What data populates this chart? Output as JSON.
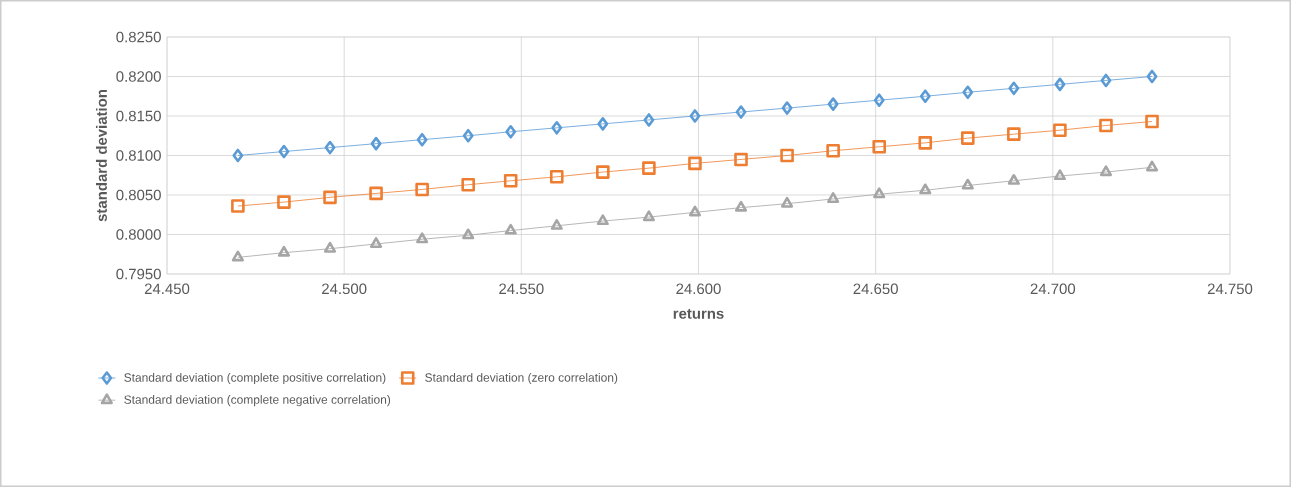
{
  "chart_data": {
    "type": "line",
    "xlabel": "returns",
    "ylabel": "standard deviation",
    "x": [
      24.47,
      24.483,
      24.496,
      24.509,
      24.522,
      24.535,
      24.547,
      24.56,
      24.573,
      24.586,
      24.599,
      24.612,
      24.625,
      24.638,
      24.651,
      24.664,
      24.676,
      24.689,
      24.702,
      24.715,
      24.728
    ],
    "series": [
      {
        "name": "Standard deviation (complete positive correlation)",
        "color": "#5b9bd5",
        "marker": "diamond",
        "values": [
          0.81,
          0.8105,
          0.811,
          0.8115,
          0.812,
          0.8125,
          0.813,
          0.8135,
          0.814,
          0.8145,
          0.815,
          0.8155,
          0.816,
          0.8165,
          0.817,
          0.8175,
          0.818,
          0.8185,
          0.819,
          0.8195,
          0.82
        ]
      },
      {
        "name": "Standard deviation (zero correlation)",
        "color": "#ed7d31",
        "marker": "square",
        "values": [
          0.8036,
          0.8041,
          0.8047,
          0.8052,
          0.8057,
          0.8063,
          0.8068,
          0.8073,
          0.8079,
          0.8084,
          0.809,
          0.8095,
          0.81,
          0.8106,
          0.8111,
          0.8116,
          0.8122,
          0.8127,
          0.8132,
          0.8138,
          0.8143
        ]
      },
      {
        "name": "Standard deviation (complete negative correlation)",
        "color": "#a5a5a5",
        "marker": "triangle",
        "values": [
          0.7971,
          0.7977,
          0.7982,
          0.7988,
          0.7994,
          0.7999,
          0.8005,
          0.8011,
          0.8017,
          0.8022,
          0.8028,
          0.8034,
          0.8039,
          0.8045,
          0.8051,
          0.8056,
          0.8062,
          0.8068,
          0.8074,
          0.8079,
          0.8085
        ]
      }
    ],
    "xlim": [
      24.45,
      24.75
    ],
    "xticks": [
      {
        "value": 24.45,
        "label": "24.450"
      },
      {
        "value": 24.5,
        "label": "24.500"
      },
      {
        "value": 24.55,
        "label": "24.550"
      },
      {
        "value": 24.6,
        "label": "24.600"
      },
      {
        "value": 24.65,
        "label": "24.650"
      },
      {
        "value": 24.7,
        "label": "24.700"
      },
      {
        "value": 24.75,
        "label": "24.750"
      }
    ],
    "ylim": [
      0.795,
      0.825
    ],
    "yticks": [
      {
        "value": 0.795,
        "label": "0.7950"
      },
      {
        "value": 0.8,
        "label": "0.8000"
      },
      {
        "value": 0.805,
        "label": "0.8050"
      },
      {
        "value": 0.81,
        "label": "0.8100"
      },
      {
        "value": 0.815,
        "label": "0.8150"
      },
      {
        "value": 0.82,
        "label": "0.8200"
      },
      {
        "value": 0.825,
        "label": "0.8250"
      }
    ],
    "grid": true,
    "legend": "bottom",
    "line_style": "solid"
  }
}
